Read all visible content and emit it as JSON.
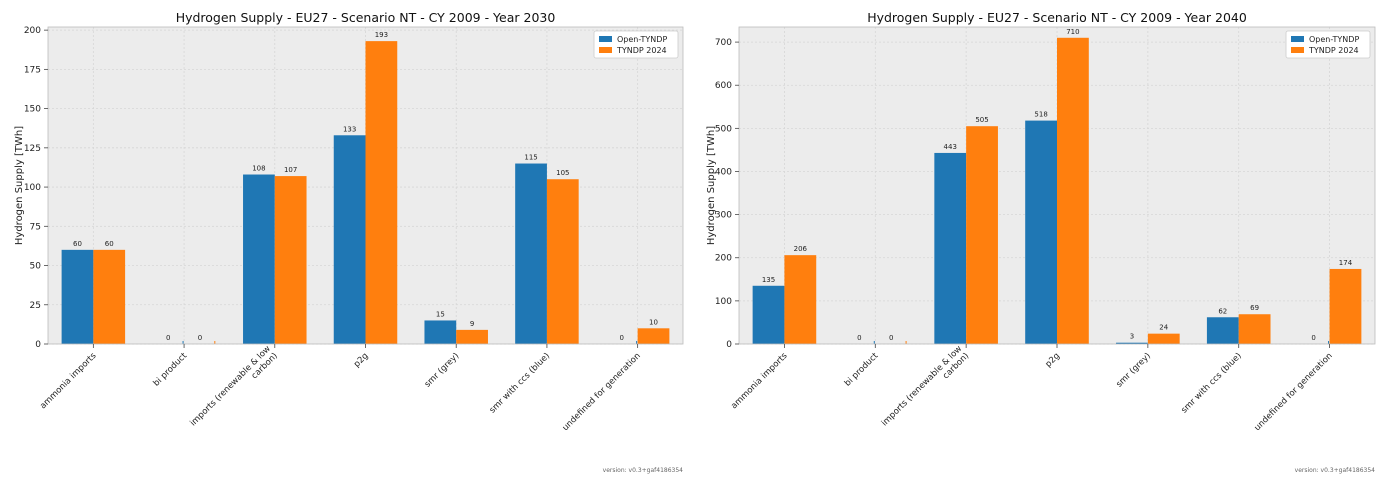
{
  "chart_data": [
    {
      "type": "bar",
      "title": "Hydrogen Supply - EU27 - Scenario NT - CY 2009 - Year 2030",
      "xlabel": "",
      "ylabel": "Hydrogen Supply [TWh]",
      "ylim": [
        0,
        202
      ],
      "yticks": [
        0,
        25,
        50,
        75,
        100,
        125,
        150,
        175,
        200
      ],
      "grid": true,
      "legend_position": "top-right",
      "categories": [
        "ammonia imports",
        "bi product",
        "imports (renewable & low carbon)",
        "p2g",
        "smr (grey)",
        "smr with ccs (blue)",
        "undefined for generation"
      ],
      "category_label_lines": [
        [
          "ammonia imports"
        ],
        [
          "bi product"
        ],
        [
          "imports (renewable & low",
          "carbon)"
        ],
        [
          "p2g"
        ],
        [
          "smr (grey)"
        ],
        [
          "smr with ccs (blue)"
        ],
        [
          "undefined for generation"
        ]
      ],
      "series": [
        {
          "name": "Open-TYNDP",
          "color": "#1f77b4",
          "values": [
            60,
            0,
            108,
            133,
            15,
            115,
            0
          ]
        },
        {
          "name": "TYNDP 2024",
          "color": "#ff7f0e",
          "values": [
            60,
            0,
            107,
            193,
            9,
            105,
            10
          ]
        }
      ],
      "footnote": "version: v0.3+gaf4186354"
    },
    {
      "type": "bar",
      "title": "Hydrogen Supply - EU27 - Scenario NT - CY 2009 - Year 2040",
      "xlabel": "",
      "ylabel": "Hydrogen Supply [TWh]",
      "ylim": [
        0,
        735
      ],
      "yticks": [
        0,
        100,
        200,
        300,
        400,
        500,
        600,
        700
      ],
      "grid": true,
      "legend_position": "top-right",
      "categories": [
        "ammonia imports",
        "bi product",
        "imports (renewable & low carbon)",
        "p2g",
        "smr (grey)",
        "smr with ccs (blue)",
        "undefined for generation"
      ],
      "category_label_lines": [
        [
          "ammonia imports"
        ],
        [
          "bi product"
        ],
        [
          "imports (renewable & low",
          "carbon)"
        ],
        [
          "p2g"
        ],
        [
          "smr (grey)"
        ],
        [
          "smr with ccs (blue)"
        ],
        [
          "undefined for generation"
        ]
      ],
      "series": [
        {
          "name": "Open-TYNDP",
          "color": "#1f77b4",
          "values": [
            135,
            0,
            443,
            518,
            3,
            62,
            0
          ]
        },
        {
          "name": "TYNDP 2024",
          "color": "#ff7f0e",
          "values": [
            206,
            0,
            505,
            710,
            24,
            69,
            174
          ]
        }
      ],
      "footnote": "version: v0.3+gaf4186354"
    }
  ]
}
